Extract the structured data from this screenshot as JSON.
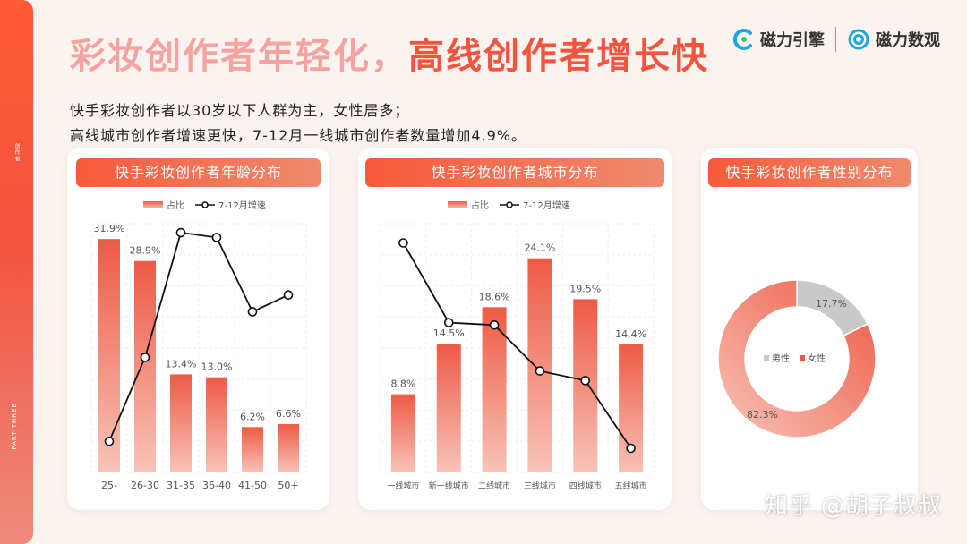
{
  "page": {
    "title_part1": "彩妆创作者年轻化，",
    "title_part2": "高线创作者增长快",
    "desc_line1": "快手彩妆创作者以30岁以下人群为主，女性居多；",
    "desc_line2": "高线城市创作者增速更快，7-12月一线城市创作者数量增加4.9%。",
    "logo1": "磁力引擎",
    "logo2": "磁力数观",
    "side_top_text": "创作者",
    "side_bottom_text": "PART THREE",
    "watermark": "知乎 @胡子叔叔"
  },
  "colors": {
    "accent": "#f2543e",
    "bar": "#ee5a45",
    "bar_light": "#f8c3b8",
    "gray": "#c9c9c9"
  },
  "chart_data": [
    {
      "type": "bar",
      "title": "快手彩妆创作者年龄分布",
      "legend": [
        "占比",
        "7-12月增速"
      ],
      "legend_position": "top",
      "categories": [
        "25-",
        "26-30",
        "31-35",
        "36-40",
        "41-50",
        "50+"
      ],
      "series": [
        {
          "name": "占比",
          "type": "bar",
          "values": [
            31.9,
            28.9,
            13.4,
            13.0,
            6.2,
            6.6
          ],
          "labels": [
            "31.9%",
            "28.9%",
            "13.4%",
            "13.0%",
            "6.2%",
            "6.6%"
          ]
        },
        {
          "name": "7-12月增速",
          "type": "line",
          "values": [
            0.1,
            0.45,
            0.97,
            0.95,
            0.64,
            0.71
          ]
        }
      ],
      "grid": true
    },
    {
      "type": "bar",
      "title": "快手彩妆创作者城市分布",
      "legend": [
        "占比",
        "7-12月增速"
      ],
      "legend_position": "top",
      "categories": [
        "一线城市",
        "新一线城市",
        "二线城市",
        "三线城市",
        "四线城市",
        "五线城市"
      ],
      "series": [
        {
          "name": "占比",
          "type": "bar",
          "values": [
            8.8,
            14.5,
            18.6,
            24.1,
            19.5,
            14.4
          ],
          "labels": [
            "8.8%",
            "14.5%",
            "18.6%",
            "24.1%",
            "19.5%",
            "14.4%"
          ]
        },
        {
          "name": "7-12月增速",
          "type": "line",
          "values": [
            0.95,
            0.62,
            0.61,
            0.42,
            0.38,
            0.1
          ]
        }
      ],
      "grid": true
    },
    {
      "type": "pie",
      "title": "快手彩妆创作者性别分布",
      "legend": [
        "男性",
        "女性"
      ],
      "legend_position": "center",
      "slices": [
        {
          "name": "男性",
          "value": 17.7,
          "label": "17.7%"
        },
        {
          "name": "女性",
          "value": 82.3,
          "label": "82.3%"
        }
      ]
    }
  ]
}
